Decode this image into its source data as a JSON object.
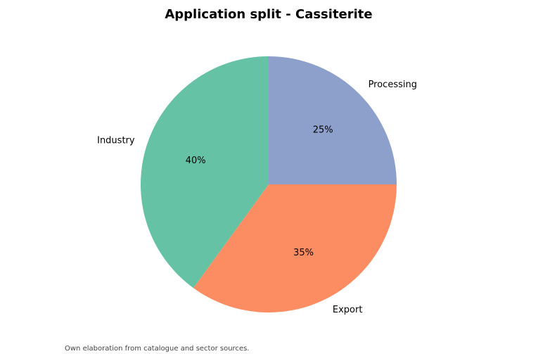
{
  "chart_data": {
    "type": "pie",
    "title": "Application split - Cassiterite",
    "categories": [
      "Industry",
      "Export",
      "Processing"
    ],
    "values": [
      40,
      35,
      25
    ],
    "value_labels": [
      "40%",
      "35%",
      "25%"
    ],
    "colors": [
      "#66c2a5",
      "#fc8d62",
      "#8da0cb"
    ],
    "note": "Own elaboration from catalogue and sector sources."
  }
}
